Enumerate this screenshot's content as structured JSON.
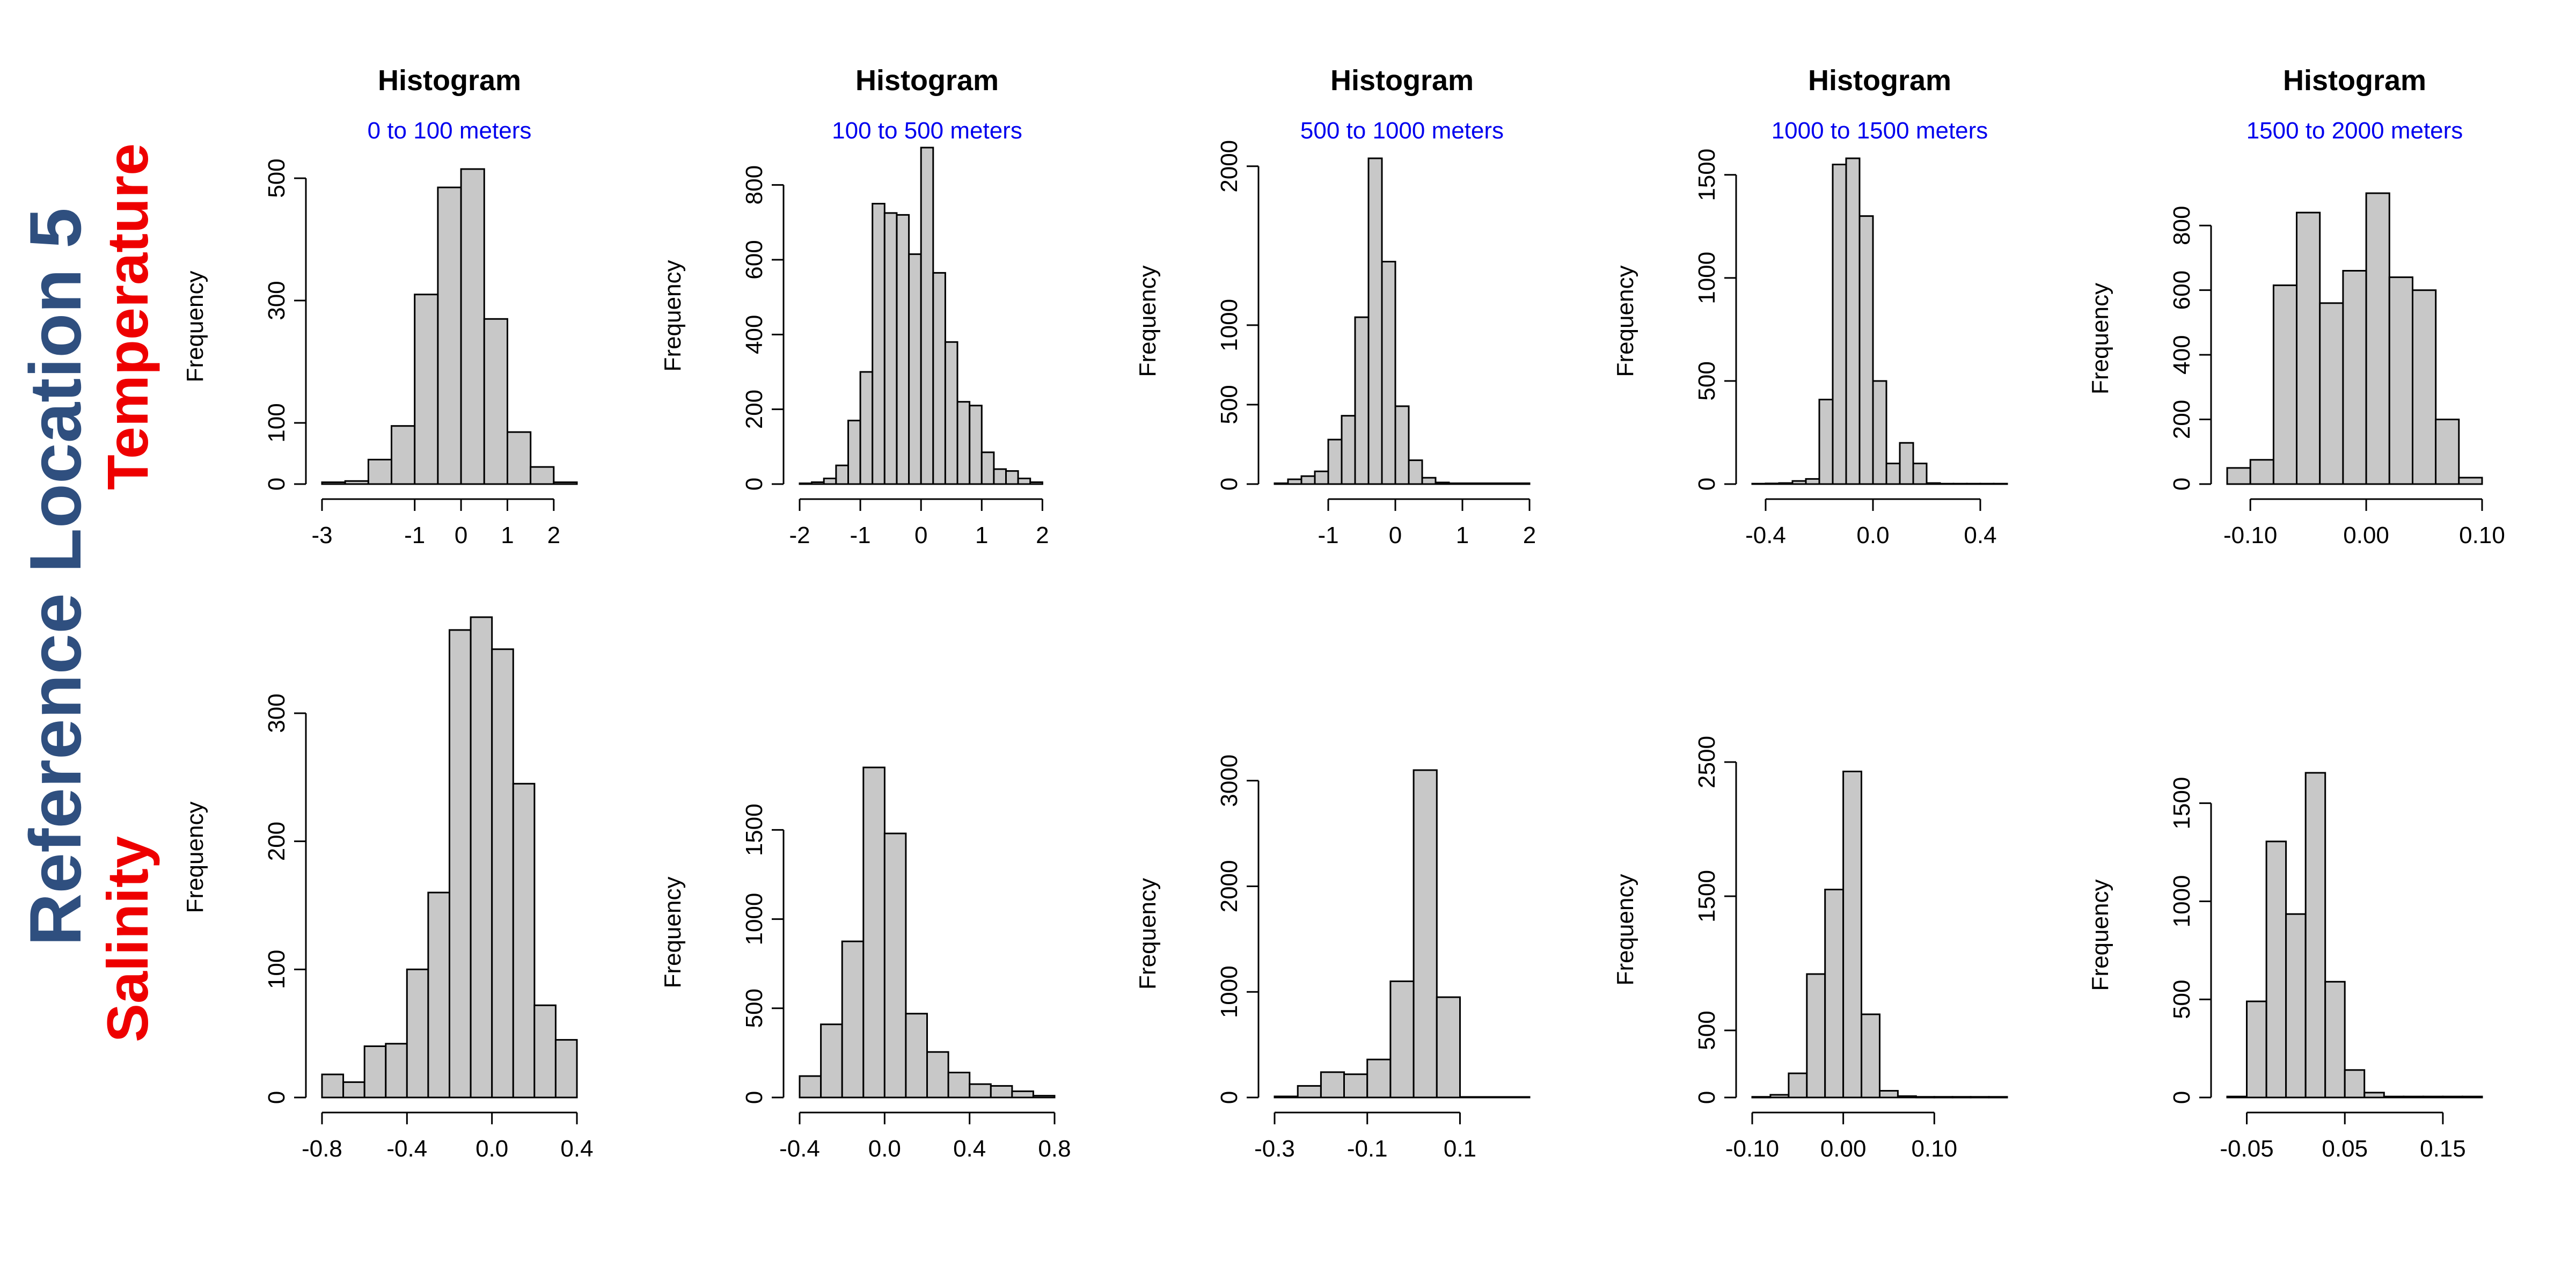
{
  "figure_title": "Reference Location 5",
  "row_labels": [
    "Temperature",
    "Salinity"
  ],
  "colors": {
    "figure_title": "#2f4f7f",
    "row_label": "#ee0000",
    "subtitle": "#0000ee",
    "bar_fill": "#c8c8c8",
    "bar_stroke": "#000000"
  },
  "chart_data": [
    {
      "type": "bar",
      "row": 0,
      "col": 0,
      "title": "Histogram",
      "subtitle": "0 to 100 meters",
      "ylabel": "Frequency",
      "bin_start": -3.0,
      "bin_width": 0.5,
      "values": [
        3,
        5,
        40,
        95,
        310,
        485,
        515,
        270,
        85,
        28,
        3
      ],
      "xlim": [
        -3.0,
        2.5
      ],
      "ylim": [
        0,
        515
      ],
      "xticks": [
        -3,
        -1,
        0,
        1,
        2
      ],
      "xtick_labels": [
        "-3",
        "-1",
        "0",
        "1",
        "2"
      ],
      "yticks": [
        0,
        100,
        300,
        500
      ],
      "ytick_labels": [
        "0",
        "100",
        "300",
        "500"
      ]
    },
    {
      "type": "bar",
      "row": 0,
      "col": 1,
      "title": "Histogram",
      "subtitle": "100 to 500 meters",
      "ylabel": "Frequency",
      "bin_start": -2.0,
      "bin_width": 0.2,
      "values": [
        2,
        5,
        15,
        50,
        170,
        300,
        750,
        725,
        720,
        615,
        900,
        565,
        380,
        220,
        210,
        85,
        40,
        35,
        15,
        5
      ],
      "xlim": [
        -2.0,
        2.2
      ],
      "ylim": [
        0,
        900
      ],
      "xticks": [
        -2,
        -1,
        0,
        1,
        2
      ],
      "xtick_labels": [
        "-2",
        "-1",
        "0",
        "1",
        "2"
      ],
      "yticks": [
        0,
        200,
        400,
        600,
        800
      ],
      "ytick_labels": [
        "0",
        "200",
        "400",
        "600",
        "800"
      ]
    },
    {
      "type": "bar",
      "row": 0,
      "col": 2,
      "title": "Histogram",
      "subtitle": "500 to 1000 meters",
      "ylabel": "Frequency",
      "bin_start": -1.8,
      "bin_width": 0.2,
      "values": [
        5,
        30,
        50,
        80,
        280,
        430,
        1050,
        2050,
        1400,
        490,
        150,
        40,
        10,
        5,
        5,
        5,
        5,
        5,
        5
      ],
      "xlim": [
        -1.8,
        2.0
      ],
      "ylim": [
        0,
        2050
      ],
      "xticks": [
        -1,
        0,
        1,
        2
      ],
      "xtick_labels": [
        "-1",
        "0",
        "1",
        "2"
      ],
      "yticks": [
        0,
        500,
        1000,
        2000
      ],
      "ytick_labels": [
        "0",
        "500",
        "1000",
        "2000"
      ]
    },
    {
      "type": "bar",
      "row": 0,
      "col": 3,
      "title": "Histogram",
      "subtitle": "1000 to 1500 meters",
      "ylabel": "Frequency",
      "bin_start": -0.45,
      "bin_width": 0.05,
      "values": [
        2,
        3,
        5,
        15,
        25,
        410,
        1550,
        1580,
        1300,
        500,
        100,
        200,
        100,
        5,
        2,
        2,
        2,
        2,
        2
      ],
      "xlim": [
        -0.45,
        0.5
      ],
      "ylim": [
        0,
        1580
      ],
      "xticks": [
        -0.4,
        0.0,
        0.4
      ],
      "xtick_labels": [
        "-0.4",
        "0.0",
        "0.4"
      ],
      "yticks": [
        0,
        500,
        1000,
        1500
      ],
      "ytick_labels": [
        "0",
        "500",
        "1000",
        "1500"
      ]
    },
    {
      "type": "bar",
      "row": 0,
      "col": 4,
      "title": "Histogram",
      "subtitle": "1500 to 2000 meters",
      "ylabel": "Frequency",
      "bin_start": -0.12,
      "bin_width": 0.02,
      "values": [
        50,
        75,
        615,
        840,
        560,
        660,
        900,
        640,
        600,
        200,
        20
      ],
      "xlim": [
        -0.12,
        0.1
      ],
      "ylim": [
        0,
        900
      ],
      "xticks": [
        -0.1,
        0.0,
        0.1
      ],
      "xtick_labels": [
        "-0.10",
        "0.00",
        "0.10"
      ],
      "yticks": [
        0,
        200,
        400,
        600,
        800
      ],
      "ytick_labels": [
        "0",
        "200",
        "400",
        "600",
        "800"
      ]
    },
    {
      "type": "bar",
      "row": 1,
      "col": 0,
      "title": "",
      "subtitle": "",
      "ylabel": "Frequency",
      "bin_start": -0.8,
      "bin_width": 0.1,
      "values": [
        18,
        12,
        40,
        42,
        100,
        160,
        365,
        375,
        350,
        245,
        72,
        45
      ],
      "xlim": [
        -0.8,
        0.4
      ],
      "ylim": [
        0,
        375
      ],
      "xticks": [
        -0.8,
        -0.4,
        0.0,
        0.4
      ],
      "xtick_labels": [
        "-0.8",
        "-0.4",
        "0.0",
        "0.4"
      ],
      "yticks": [
        0,
        100,
        200,
        300
      ],
      "ytick_labels": [
        "0",
        "100",
        "200",
        "300"
      ]
    },
    {
      "type": "bar",
      "row": 1,
      "col": 1,
      "title": "",
      "subtitle": "",
      "ylabel": "Frequency",
      "bin_start": -0.4,
      "bin_width": 0.1,
      "values": [
        120,
        410,
        875,
        1850,
        1480,
        470,
        255,
        140,
        75,
        65,
        35,
        10
      ],
      "xlim": [
        -0.4,
        0.8
      ],
      "ylim": [
        0,
        1850
      ],
      "xticks": [
        -0.4,
        0.0,
        0.4,
        0.8
      ],
      "xtick_labels": [
        "-0.4",
        "0.0",
        "0.4",
        "0.8"
      ],
      "yticks": [
        0,
        500,
        1000,
        1500
      ],
      "ytick_labels": [
        "0",
        "500",
        "1000",
        "1500"
      ]
    },
    {
      "type": "bar",
      "row": 1,
      "col": 2,
      "title": "",
      "subtitle": "",
      "ylabel": "Frequency",
      "bin_start": -0.3,
      "bin_width": 0.05,
      "values": [
        10,
        110,
        240,
        220,
        360,
        1100,
        3100,
        950,
        5,
        5,
        5
      ],
      "xlim": [
        -0.3,
        0.25
      ],
      "ylim": [
        0,
        3100
      ],
      "xticks": [
        -0.3,
        -0.1,
        0.1
      ],
      "xtick_labels": [
        "-0.3",
        "-0.1",
        "0.1"
      ],
      "yticks": [
        0,
        1000,
        2000,
        3000
      ],
      "ytick_labels": [
        "0",
        "1000",
        "2000",
        "3000"
      ]
    },
    {
      "type": "bar",
      "row": 1,
      "col": 3,
      "title": "",
      "subtitle": "",
      "ylabel": "Frequency",
      "bin_start": -0.1,
      "bin_width": 0.02,
      "values": [
        5,
        20,
        180,
        920,
        1550,
        2430,
        620,
        50,
        10,
        5,
        5,
        5,
        5,
        5
      ],
      "xlim": [
        -0.1,
        0.18
      ],
      "ylim": [
        0,
        2500
      ],
      "xticks": [
        -0.1,
        0.0,
        0.1
      ],
      "xtick_labels": [
        "-0.10",
        "0.00",
        "0.10"
      ],
      "yticks": [
        0,
        500,
        1500,
        2500
      ],
      "ytick_labels": [
        "0",
        "500",
        "1500",
        "2500"
      ]
    },
    {
      "type": "bar",
      "row": 1,
      "col": 4,
      "title": "",
      "subtitle": "",
      "ylabel": "Frequency",
      "bin_start": -0.07,
      "bin_width": 0.02,
      "values": [
        5,
        490,
        1305,
        935,
        1655,
        590,
        140,
        25,
        5,
        5,
        5,
        5,
        5
      ],
      "xlim": [
        -0.07,
        0.19
      ],
      "ylim": [
        0,
        1655
      ],
      "xticks": [
        -0.05,
        0.05,
        0.15
      ],
      "xtick_labels": [
        "-0.05",
        "0.05",
        "0.15"
      ],
      "yticks": [
        0,
        500,
        1000,
        1500
      ],
      "ytick_labels": [
        "0",
        "500",
        "1000",
        "1500"
      ]
    }
  ]
}
